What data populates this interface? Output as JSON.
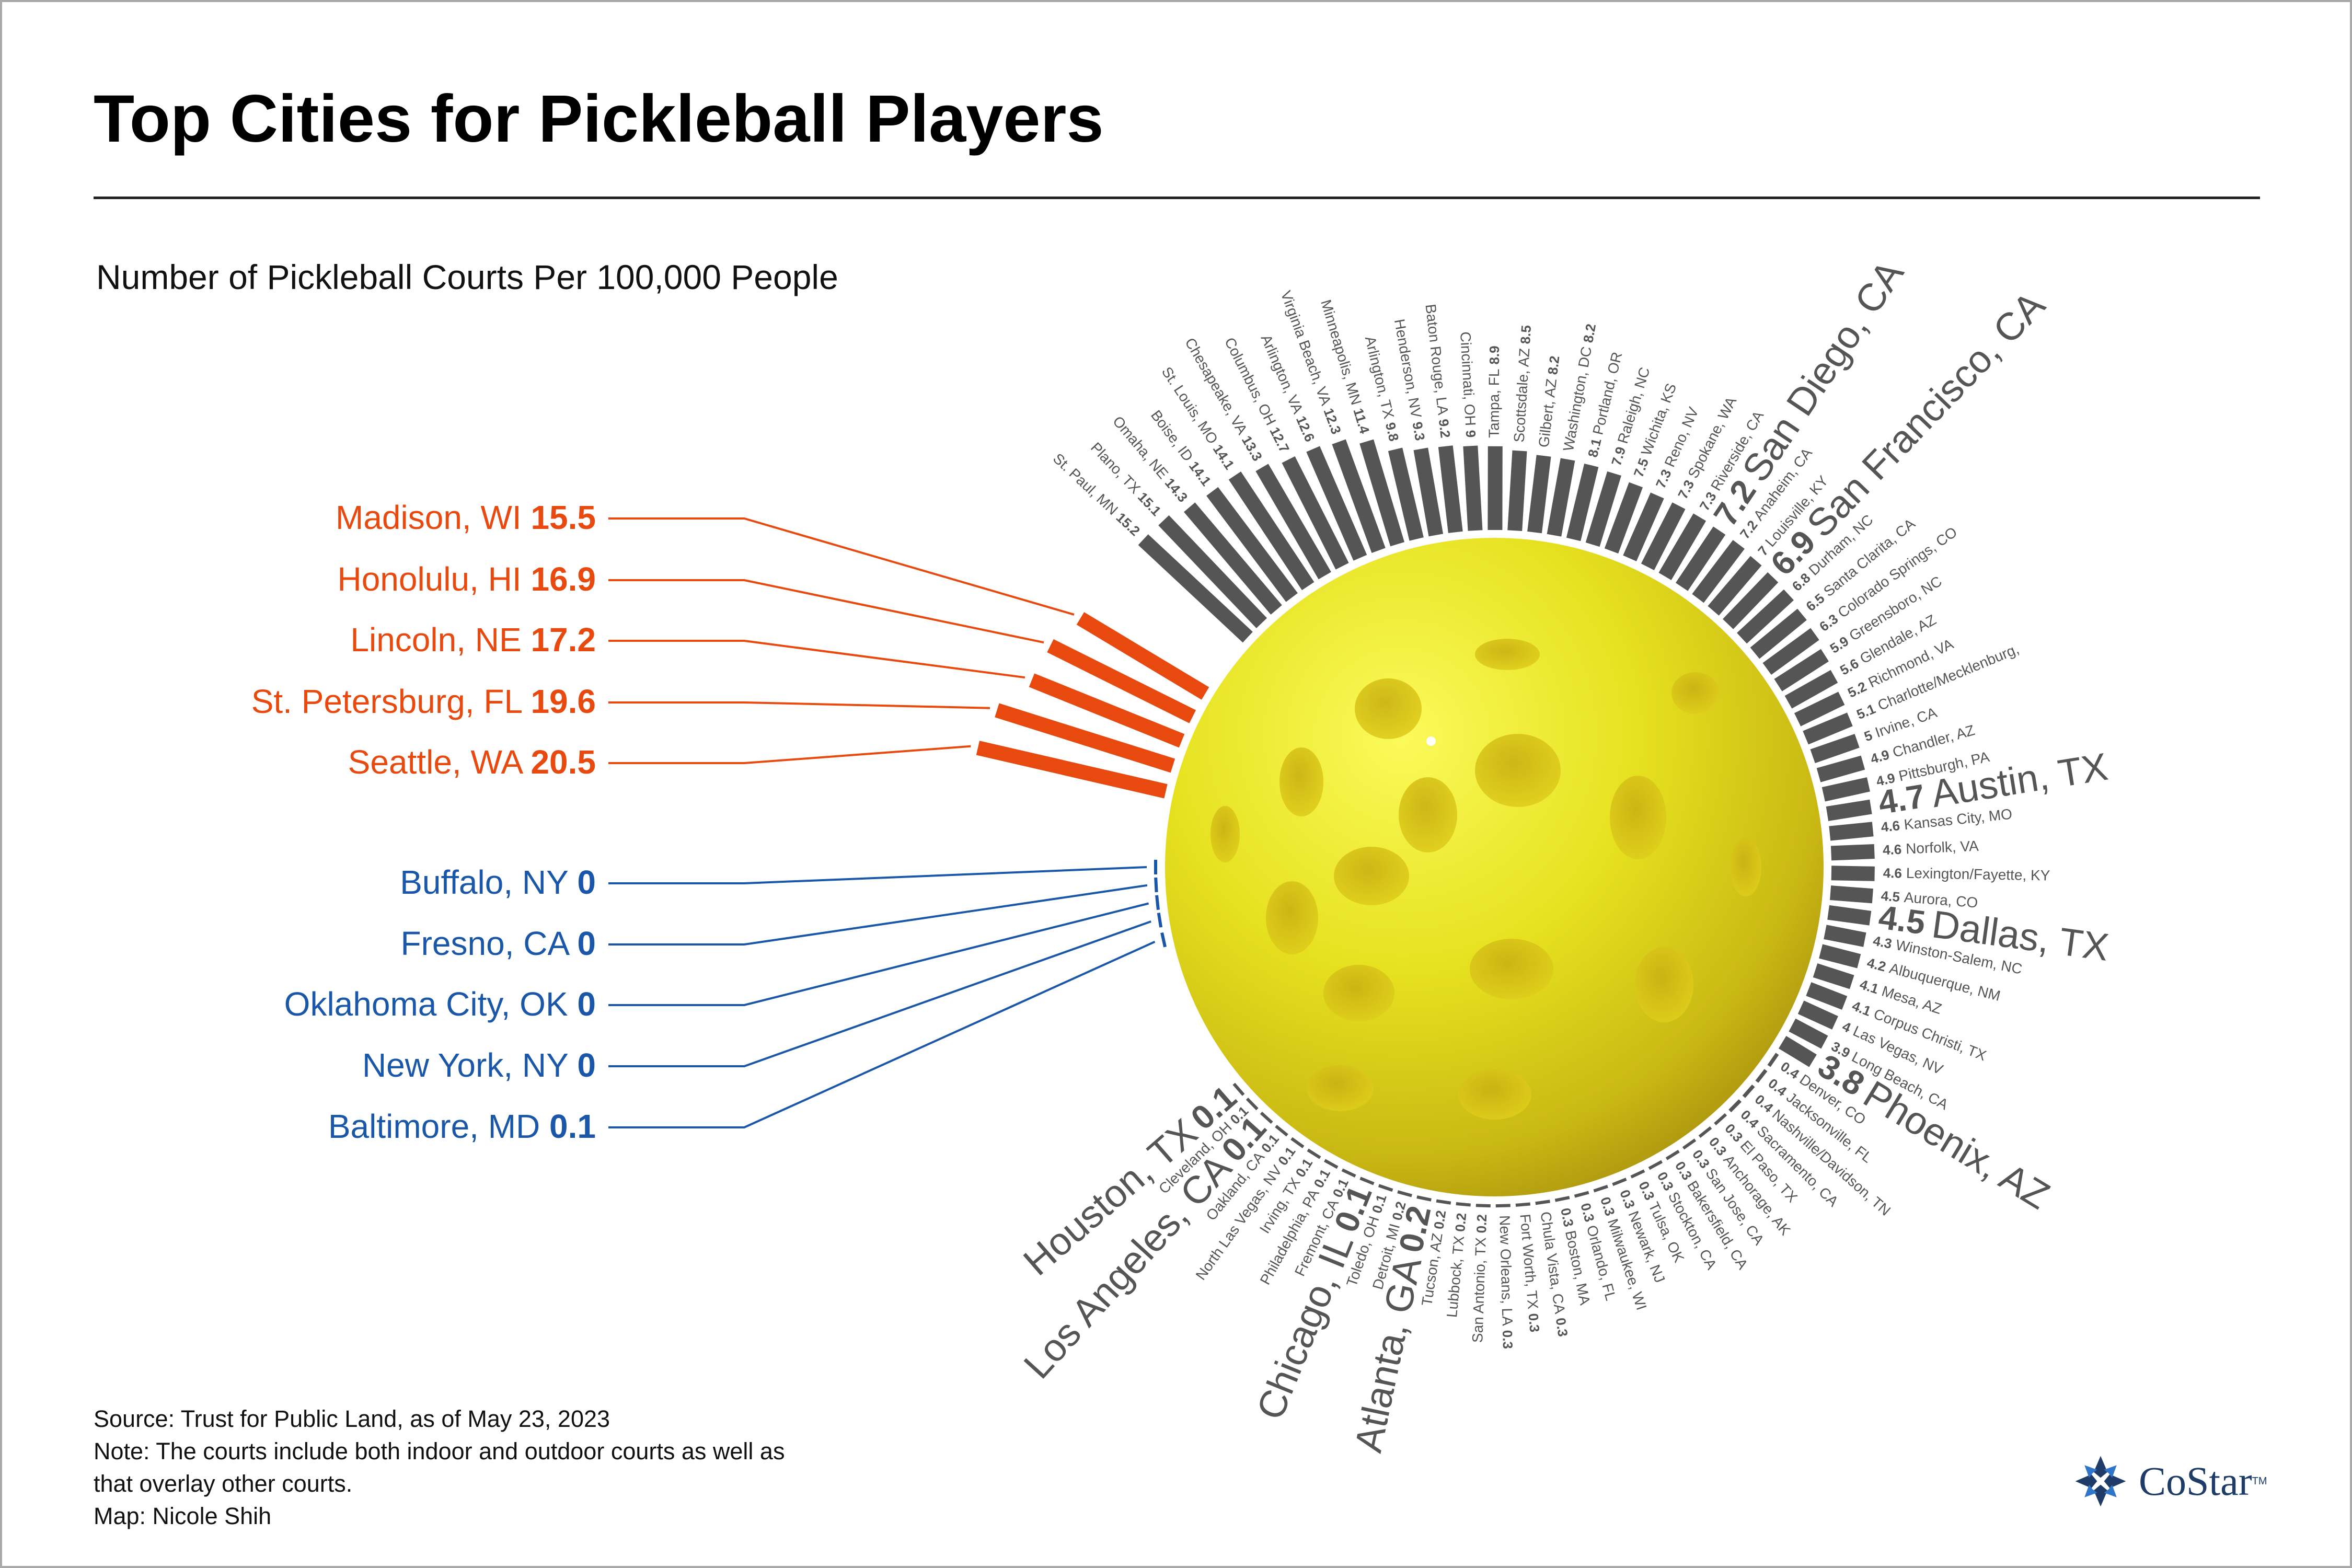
{
  "title": "Top Cities for Pickleball Players",
  "subtitle": "Number of Pickleball Courts Per 100,000 People",
  "notes": {
    "source": "Source: Trust for Public Land, as of May 23, 2023",
    "note_line1": "Note: The courts include both indoor and outdoor courts as well as",
    "note_line2": "that overlay other courts.",
    "map_credit": "Map: Nicole Shih"
  },
  "logo": {
    "name": "CoStar",
    "tm": "TM",
    "icon": "costar-star-logo-icon"
  },
  "colors": {
    "top": "#e8490f",
    "bottom": "#1a57a8",
    "bar": "#555555",
    "label": "#555555",
    "ball": "#e0dc1e"
  },
  "chart_data": {
    "type": "radial-bar",
    "title": "Number of Pickleball Courts Per 100,000 People",
    "unit": "courts per 100,000 people",
    "top5": [
      {
        "label": "Madison, WI",
        "value_text": "15.5",
        "value": 15.5
      },
      {
        "label": "Honolulu, HI",
        "value_text": "16.9",
        "value": 16.9
      },
      {
        "label": "Lincoln, NE",
        "value_text": "17.2",
        "value": 17.2
      },
      {
        "label": "St. Petersburg, FL",
        "value_text": "19.6",
        "value": 19.6
      },
      {
        "label": "Seattle, WA",
        "value_text": "20.5",
        "value": 20.5
      }
    ],
    "bottom5": [
      {
        "label": "Buffalo, NY",
        "value_text": "0",
        "value": 0
      },
      {
        "label": "Fresno, CA",
        "value_text": "0",
        "value": 0
      },
      {
        "label": "Oklahoma City, OK",
        "value_text": "0",
        "value": 0
      },
      {
        "label": "New York, NY",
        "value_text": "0",
        "value": 0
      },
      {
        "label": "Baltimore, MD",
        "value_text": "0.1",
        "value": 0.1
      }
    ],
    "ring": [
      {
        "label": "St. Paul, MN",
        "value_text": "15.2",
        "value": 15.2
      },
      {
        "label": "Plano, TX",
        "value_text": "15.1",
        "value": 15.1
      },
      {
        "label": "Omaha, NE",
        "value_text": "14.3",
        "value": 14.3
      },
      {
        "label": "Boise, ID",
        "value_text": "14.1",
        "value": 14.1
      },
      {
        "label": "St. Louis, MO",
        "value_text": "14.1",
        "value": 14.1
      },
      {
        "label": "Chesapeake, VA",
        "value_text": "13.3",
        "value": 13.3
      },
      {
        "label": "Columbus, OH",
        "value_text": "12.7",
        "value": 12.7
      },
      {
        "label": "Arlington, VA",
        "value_text": "12.6",
        "value": 12.6
      },
      {
        "label": "Virginia Beach, VA",
        "value_text": "12.3",
        "value": 12.3
      },
      {
        "label": "Minneapolis, MN",
        "value_text": "11.4",
        "value": 11.4
      },
      {
        "label": "Arlington, TX",
        "value_text": "9.8",
        "value": 9.8
      },
      {
        "label": "Henderson, NV",
        "value_text": "9.3",
        "value": 9.3
      },
      {
        "label": "Baton Rouge, LA",
        "value_text": "9.2",
        "value": 9.2
      },
      {
        "label": "Cincinnati, OH",
        "value_text": "9",
        "value": 9
      },
      {
        "label": "Tampa, FL",
        "value_text": "8.9",
        "value": 8.9
      },
      {
        "label": "Scottsdale, AZ",
        "value_text": "8.5",
        "value": 8.5
      },
      {
        "label": "Gilbert, AZ",
        "value_text": "8.2",
        "value": 8.2
      },
      {
        "label": "Washington, DC",
        "value_text": "8.2",
        "value": 8.2
      },
      {
        "label": "Portland, OR",
        "value_text": "8.1",
        "value": 8.1,
        "value_first": true
      },
      {
        "label": "Raleigh, NC",
        "value_text": "7.9",
        "value": 7.9,
        "value_first": true
      },
      {
        "label": "Wichita, KS",
        "value_text": "7.5",
        "value": 7.5,
        "value_first": true
      },
      {
        "label": "Reno, NV",
        "value_text": "7.3",
        "value": 7.3,
        "value_first": true
      },
      {
        "label": "Spokane, WA",
        "value_text": "7.3",
        "value": 7.3,
        "value_first": true
      },
      {
        "label": "Riverside, CA",
        "value_text": "7.3",
        "value": 7.3,
        "value_first": true
      },
      {
        "label": "San Diego, CA",
        "value_text": "7.2",
        "value": 7.2,
        "value_first": true,
        "big": true
      },
      {
        "label": "Anaheim, CA",
        "value_text": "7.2",
        "value": 7.2,
        "value_first": true
      },
      {
        "label": "Louisville, KY",
        "value_text": "7",
        "value": 7,
        "value_first": true
      },
      {
        "label": "San Francisco, CA",
        "value_text": "6.9",
        "value": 6.9,
        "value_first": true,
        "big": true
      },
      {
        "label": "Durham, NC",
        "value_text": "6.8",
        "value": 6.8,
        "value_first": true
      },
      {
        "label": "Santa Clarita, CA",
        "value_text": "6.5",
        "value": 6.5,
        "value_first": true
      },
      {
        "label": "Colorado Springs, CO",
        "value_text": "6.3",
        "value": 6.3,
        "value_first": true
      },
      {
        "label": "Greensboro, NC",
        "value_text": "5.9",
        "value": 5.9,
        "value_first": true
      },
      {
        "label": "Glendale, AZ",
        "value_text": "5.6",
        "value": 5.6,
        "value_first": true
      },
      {
        "label": "Richmond, VA",
        "value_text": "5.2",
        "value": 5.2,
        "value_first": true
      },
      {
        "label": "Charlotte/Mecklenburg,",
        "value_text": "5.1",
        "value": 5.1,
        "value_first": true
      },
      {
        "label": "Irvine, CA",
        "value_text": "5",
        "value": 5,
        "value_first": true
      },
      {
        "label": "Chandler, AZ",
        "value_text": "4.9",
        "value": 4.9,
        "value_first": true
      },
      {
        "label": "Pittsburgh, PA",
        "value_text": "4.9",
        "value": 4.9,
        "value_first": true
      },
      {
        "label": "Austin, TX",
        "value_text": "4.7",
        "value": 4.7,
        "value_first": true,
        "big": true
      },
      {
        "label": "Kansas City, MO",
        "value_text": "4.6",
        "value": 4.6,
        "value_first": true
      },
      {
        "label": "Norfolk, VA",
        "value_text": "4.6",
        "value": 4.6,
        "value_first": true
      },
      {
        "label": "Lexington/Fayette, KY",
        "value_text": "4.6",
        "value": 4.6,
        "value_first": true
      },
      {
        "label": "Aurora, CO",
        "value_text": "4.5",
        "value": 4.5,
        "value_first": true
      },
      {
        "label": "Dallas, TX",
        "value_text": "4.5",
        "value": 4.5,
        "value_first": true,
        "big": true
      },
      {
        "label": "Winston-Salem, NC",
        "value_text": "4.3",
        "value": 4.3,
        "value_first": true
      },
      {
        "label": "Albuquerque, NM",
        "value_text": "4.2",
        "value": 4.2,
        "value_first": true
      },
      {
        "label": "Mesa, AZ",
        "value_text": "4.1",
        "value": 4.1,
        "value_first": true
      },
      {
        "label": "Corpus Christi, TX",
        "value_text": "4.1",
        "value": 4.1,
        "value_first": true
      },
      {
        "label": "Las Vegas, NV",
        "value_text": "4",
        "value": 4,
        "value_first": true
      },
      {
        "label": "Long Beach, CA",
        "value_text": "3.9",
        "value": 3.9,
        "value_first": true
      },
      {
        "label": "Phoenix, AZ",
        "value_text": "3.8",
        "value": 3.8,
        "value_first": true,
        "big": true
      },
      {
        "label": "Denver, CO",
        "value_text": "0.4",
        "value": 0.4,
        "value_first": true
      },
      {
        "label": "Jacksonville, FL",
        "value_text": "0.4",
        "value": 0.4,
        "value_first": true
      },
      {
        "label": "Nashville/Davidson, TN",
        "value_text": "0.4",
        "value": 0.4,
        "value_first": true
      },
      {
        "label": "Sacramento, CA",
        "value_text": "0.4",
        "value": 0.4,
        "value_first": true
      },
      {
        "label": "El Paso, TX",
        "value_text": "0.3",
        "value": 0.3,
        "value_first": true
      },
      {
        "label": "Anchorage, AK",
        "value_text": "0.3",
        "value": 0.3,
        "value_first": true
      },
      {
        "label": "San Jose, CA",
        "value_text": "0.3",
        "value": 0.3,
        "value_first": true
      },
      {
        "label": "Bakersfield, CA",
        "value_text": "0.3",
        "value": 0.3,
        "value_first": true
      },
      {
        "label": "Stockton, CA",
        "value_text": "0.3",
        "value": 0.3,
        "value_first": true
      },
      {
        "label": "Tulsa, OK",
        "value_text": "0.3",
        "value": 0.3,
        "value_first": true
      },
      {
        "label": "Newark, NJ",
        "value_text": "0.3",
        "value": 0.3,
        "value_first": true
      },
      {
        "label": "Milwaukee, WI",
        "value_text": "0.3",
        "value": 0.3,
        "value_first": true
      },
      {
        "label": "Orlando, FL",
        "value_text": "0.3",
        "value": 0.3,
        "value_first": true
      },
      {
        "label": "Boston, MA",
        "value_text": "0.3",
        "value": 0.3,
        "value_first": true
      },
      {
        "label": "Chula Vista, CA",
        "value_text": "0.3",
        "value": 0.3
      },
      {
        "label": "Fort Worth, TX",
        "value_text": "0.3",
        "value": 0.3
      },
      {
        "label": "New Orleans, LA",
        "value_text": "0.3",
        "value": 0.3
      },
      {
        "label": "San Antonio, TX",
        "value_text": "0.2",
        "value": 0.2
      },
      {
        "label": "Lubbock, TX",
        "value_text": "0.2",
        "value": 0.2
      },
      {
        "label": "Tucson, AZ",
        "value_text": "0.2",
        "value": 0.2
      },
      {
        "label": "Atlanta, GA",
        "value_text": "0.2",
        "value": 0.2,
        "big": true
      },
      {
        "label": "Detroit, MI",
        "value_text": "0.2",
        "value": 0.2
      },
      {
        "label": "Toledo, OH",
        "value_text": "0.1",
        "value": 0.1
      },
      {
        "label": "Chicago, IL",
        "value_text": "0.1",
        "value": 0.1,
        "big": true
      },
      {
        "label": "Fremont, CA",
        "value_text": "0.1",
        "value": 0.1
      },
      {
        "label": "Philadelphia, PA",
        "value_text": "0.1",
        "value": 0.1
      },
      {
        "label": "Irving, TX",
        "value_text": "0.1",
        "value": 0.1
      },
      {
        "label": "North Las Vegas, NV",
        "value_text": "0.1",
        "value": 0.1
      },
      {
        "label": "Oakland, CA",
        "value_text": "0.1",
        "value": 0.1
      },
      {
        "label": "Los Angeles, CA",
        "value_text": "0.1",
        "value": 0.1,
        "big": true
      },
      {
        "label": "Cleveland, OH",
        "value_text": "0.1",
        "value": 0.1
      },
      {
        "label": "Houston, TX",
        "value_text": "0.1",
        "value": 0.1,
        "big": true
      }
    ]
  }
}
